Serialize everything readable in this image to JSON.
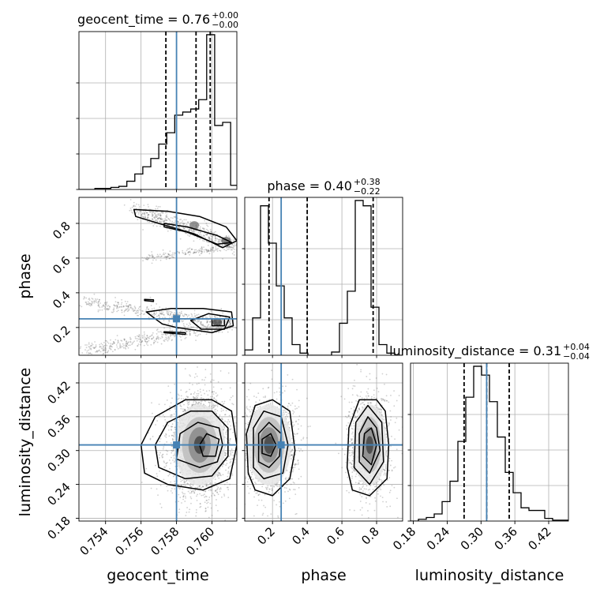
{
  "chart_data": {
    "type": "corner",
    "parameters": [
      "geocent_time",
      "phase",
      "luminosity_distance"
    ],
    "truth": {
      "geocent_time": 0.758,
      "phase": 0.25,
      "luminosity_distance": 0.31
    },
    "titles": [
      {
        "param": "geocent_time",
        "text": "geocent_time = 0.76",
        "sup": "+0.00",
        "sub": "−0.00"
      },
      {
        "param": "phase",
        "text": "phase = 0.40",
        "sup": "+0.38",
        "sub": "−0.22"
      },
      {
        "param": "luminosity_distance",
        "text": "luminosity_distance = 0.31",
        "sup": "+0.04",
        "sub": "−0.04"
      }
    ],
    "axis_labels": {
      "geocent_time": "geocent_time",
      "phase": "phase",
      "luminosity_distance": "luminosity_distance"
    },
    "ranges": {
      "geocent_time": [
        0.7525,
        0.7614
      ],
      "phase": [
        0.04,
        0.95
      ],
      "luminosity_distance": [
        0.175,
        0.455
      ]
    },
    "ticks": {
      "geocent_time": [
        0.754,
        0.756,
        0.758,
        0.76
      ],
      "phase_y": [
        0.2,
        0.4,
        0.6,
        0.8
      ],
      "phase_x": [
        0.2,
        0.4,
        0.6,
        0.8
      ],
      "luminosity_distance_y": [
        0.18,
        0.24,
        0.3,
        0.36,
        0.42
      ],
      "luminosity_distance_x": [
        0.18,
        0.24,
        0.3,
        0.36,
        0.42
      ]
    },
    "tick_labels": {
      "geocent_time": [
        "0.754",
        "0.756",
        "0.758",
        "0.760"
      ],
      "phase_y": [
        "0.2",
        "0.4",
        "0.6",
        "0.8"
      ],
      "phase_x": [
        "0.2",
        "0.4",
        "0.6",
        "0.8"
      ],
      "luminosity_distance_y": [
        "0.18",
        "0.24",
        "0.30",
        "0.36",
        "0.42"
      ],
      "luminosity_distance_x": [
        "0.18",
        "0.24",
        "0.30",
        "0.36",
        "0.42"
      ]
    },
    "histograms": {
      "geocent_time": {
        "edges": [
          0.7525,
          0.75295,
          0.7534,
          0.75385,
          0.7543,
          0.75475,
          0.7552,
          0.75565,
          0.7561,
          0.75655,
          0.757,
          0.75745,
          0.7579,
          0.75835,
          0.7588,
          0.75925,
          0.7597,
          0.76015,
          0.7606,
          0.76105,
          0.7615
        ],
        "counts": [
          0,
          0,
          1,
          1,
          2,
          3,
          8,
          15,
          22,
          30,
          44,
          55,
          72,
          75,
          78,
          87,
          150,
          62,
          65,
          4
        ],
        "quantile_lines": [
          0.7574,
          0.7591,
          0.7599
        ]
      },
      "phase": {
        "edges": [
          0.04,
          0.0855,
          0.131,
          0.1765,
          0.222,
          0.2675,
          0.313,
          0.3585,
          0.404,
          0.4495,
          0.495,
          0.5405,
          0.586,
          0.6315,
          0.677,
          0.7225,
          0.768,
          0.8135,
          0.859,
          0.9045,
          0.95
        ],
        "counts": [
          5,
          35,
          140,
          105,
          65,
          35,
          10,
          2,
          0,
          0,
          0,
          3,
          30,
          60,
          145,
          140,
          45,
          10,
          2,
          0
        ],
        "quantile_lines": [
          0.18,
          0.4,
          0.78
        ]
      },
      "luminosity_distance": {
        "edges": [
          0.175,
          0.189,
          0.203,
          0.217,
          0.231,
          0.245,
          0.259,
          0.273,
          0.287,
          0.301,
          0.315,
          0.329,
          0.343,
          0.357,
          0.371,
          0.385,
          0.399,
          0.413,
          0.427,
          0.441,
          0.455
        ],
        "counts": [
          0,
          2,
          4,
          8,
          22,
          45,
          90,
          140,
          175,
          165,
          135,
          95,
          55,
          32,
          15,
          12,
          12,
          3,
          1,
          1
        ],
        "quantile_lines": [
          0.27,
          0.31,
          0.35
        ]
      }
    },
    "scatter_clusters": {
      "geocent_time-phase": [
        {
          "type": "band",
          "x": [
            0.7555,
            0.7613
          ],
          "y": [
            0.89,
            0.67
          ],
          "jitter": [
            0.0002,
            0.025
          ],
          "n": 500
        },
        {
          "type": "band",
          "x": [
            0.7563,
            0.7613
          ],
          "y": [
            0.6,
            0.67
          ],
          "jitter": [
            0.0002,
            0.01
          ],
          "n": 200
        },
        {
          "type": "band",
          "x": [
            0.7527,
            0.7612
          ],
          "y": [
            0.35,
            0.22
          ],
          "jitter": [
            0.0002,
            0.02
          ],
          "n": 450
        },
        {
          "type": "band",
          "x": [
            0.7527,
            0.7612
          ],
          "y": [
            0.06,
            0.23
          ],
          "jitter": [
            0.0002,
            0.02
          ],
          "n": 450
        }
      ],
      "geocent_time-luminosity_distance": [
        {
          "type": "blob",
          "cx": 0.7593,
          "cy": 0.31,
          "sx": 0.0009,
          "sy": 0.045,
          "n": 2400
        }
      ],
      "phase-luminosity_distance": [
        {
          "type": "blob",
          "cx": 0.18,
          "cy": 0.31,
          "sx": 0.08,
          "sy": 0.045,
          "n": 1300
        },
        {
          "type": "blob",
          "cx": 0.76,
          "cy": 0.31,
          "sx": 0.06,
          "sy": 0.045,
          "n": 1300
        }
      ]
    },
    "contours": {
      "geocent_time-phase": [
        [
          [
            0.7556,
            0.88
          ],
          [
            0.7575,
            0.87
          ],
          [
            0.7593,
            0.84
          ],
          [
            0.7608,
            0.78
          ],
          [
            0.7614,
            0.7
          ],
          [
            0.7606,
            0.66
          ],
          [
            0.759,
            0.74
          ],
          [
            0.757,
            0.8
          ],
          [
            0.7557,
            0.84
          ]
        ],
        [
          [
            0.7573,
            0.8
          ],
          [
            0.7586,
            0.78
          ],
          [
            0.7603,
            0.73
          ],
          [
            0.7611,
            0.69
          ],
          [
            0.7603,
            0.68
          ],
          [
            0.7586,
            0.75
          ],
          [
            0.7573,
            0.78
          ]
        ],
        [
          [
            0.758,
            0.2
          ],
          [
            0.76,
            0.17
          ],
          [
            0.7612,
            0.21
          ],
          [
            0.7611,
            0.29
          ],
          [
            0.7595,
            0.31
          ],
          [
            0.7577,
            0.31
          ],
          [
            0.7563,
            0.29
          ],
          [
            0.7568,
            0.25
          ],
          [
            0.7572,
            0.22
          ]
        ],
        [
          [
            0.7594,
            0.19
          ],
          [
            0.7607,
            0.19
          ],
          [
            0.761,
            0.26
          ],
          [
            0.7598,
            0.28
          ],
          [
            0.7588,
            0.24
          ]
        ],
        [
          [
            0.76,
            0.21
          ],
          [
            0.7607,
            0.21
          ],
          [
            0.7607,
            0.25
          ],
          [
            0.76,
            0.25
          ]
        ],
        [
          [
            0.7573,
            0.17
          ],
          [
            0.7585,
            0.16
          ],
          [
            0.7585,
            0.17
          ],
          [
            0.7573,
            0.175
          ]
        ],
        [
          [
            0.7562,
            0.355
          ],
          [
            0.7567,
            0.35
          ],
          [
            0.7567,
            0.36
          ],
          [
            0.7562,
            0.362
          ]
        ]
      ],
      "geocent_time-luminosity_distance": [
        [
          [
            0.7562,
            0.26
          ],
          [
            0.7575,
            0.24
          ],
          [
            0.7595,
            0.23
          ],
          [
            0.761,
            0.25
          ],
          [
            0.7614,
            0.31
          ],
          [
            0.7611,
            0.37
          ],
          [
            0.76,
            0.39
          ],
          [
            0.7585,
            0.39
          ],
          [
            0.7568,
            0.36
          ],
          [
            0.756,
            0.31
          ]
        ],
        [
          [
            0.757,
            0.27
          ],
          [
            0.7585,
            0.25
          ],
          [
            0.76,
            0.255
          ],
          [
            0.7609,
            0.29
          ],
          [
            0.7609,
            0.34
          ],
          [
            0.76,
            0.37
          ],
          [
            0.7588,
            0.37
          ],
          [
            0.7575,
            0.35
          ],
          [
            0.7568,
            0.31
          ]
        ],
        [
          [
            0.758,
            0.285
          ],
          [
            0.7593,
            0.27
          ],
          [
            0.7603,
            0.28
          ],
          [
            0.7606,
            0.31
          ],
          [
            0.7604,
            0.34
          ],
          [
            0.7592,
            0.35
          ],
          [
            0.7582,
            0.33
          ]
        ],
        [
          [
            0.7595,
            0.29
          ],
          [
            0.7602,
            0.29
          ],
          [
            0.7604,
            0.32
          ],
          [
            0.7597,
            0.33
          ],
          [
            0.7593,
            0.31
          ]
        ]
      ],
      "phase-luminosity_distance": [
        [
          [
            0.06,
            0.26
          ],
          [
            0.1,
            0.23
          ],
          [
            0.2,
            0.22
          ],
          [
            0.3,
            0.25
          ],
          [
            0.33,
            0.3
          ],
          [
            0.3,
            0.37
          ],
          [
            0.2,
            0.39
          ],
          [
            0.1,
            0.38
          ],
          [
            0.05,
            0.33
          ]
        ],
        [
          [
            0.09,
            0.27
          ],
          [
            0.15,
            0.25
          ],
          [
            0.26,
            0.26
          ],
          [
            0.29,
            0.31
          ],
          [
            0.25,
            0.36
          ],
          [
            0.15,
            0.37
          ],
          [
            0.09,
            0.34
          ]
        ],
        [
          [
            0.12,
            0.28
          ],
          [
            0.18,
            0.27
          ],
          [
            0.24,
            0.29
          ],
          [
            0.25,
            0.33
          ],
          [
            0.18,
            0.35
          ],
          [
            0.12,
            0.33
          ]
        ],
        [
          [
            0.14,
            0.295
          ],
          [
            0.19,
            0.29
          ],
          [
            0.22,
            0.31
          ],
          [
            0.19,
            0.33
          ],
          [
            0.14,
            0.32
          ]
        ],
        [
          [
            0.63,
            0.27
          ],
          [
            0.66,
            0.23
          ],
          [
            0.76,
            0.22
          ],
          [
            0.86,
            0.25
          ],
          [
            0.87,
            0.31
          ],
          [
            0.85,
            0.37
          ],
          [
            0.8,
            0.39
          ],
          [
            0.7,
            0.39
          ],
          [
            0.64,
            0.34
          ]
        ],
        [
          [
            0.67,
            0.27
          ],
          [
            0.76,
            0.24
          ],
          [
            0.84,
            0.28
          ],
          [
            0.83,
            0.35
          ],
          [
            0.75,
            0.38
          ],
          [
            0.68,
            0.35
          ]
        ],
        [
          [
            0.7,
            0.28
          ],
          [
            0.76,
            0.26
          ],
          [
            0.82,
            0.3
          ],
          [
            0.8,
            0.34
          ],
          [
            0.75,
            0.36
          ],
          [
            0.7,
            0.33
          ]
        ],
        [
          [
            0.72,
            0.29
          ],
          [
            0.77,
            0.275
          ],
          [
            0.8,
            0.31
          ],
          [
            0.77,
            0.34
          ],
          [
            0.73,
            0.33
          ]
        ]
      ]
    },
    "truth_color": "#4682b4",
    "contour_color": "#000000"
  }
}
